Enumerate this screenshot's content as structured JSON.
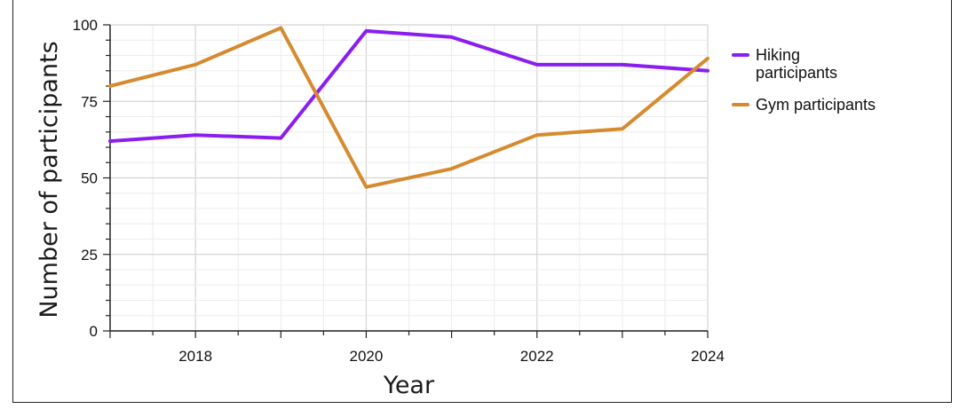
{
  "chart_data": {
    "type": "line",
    "title": "",
    "xlabel": "Year",
    "ylabel": "Number of participants",
    "xlim": [
      2017,
      2024
    ],
    "ylim": [
      0,
      100
    ],
    "x_ticks": [
      "2018",
      "2020",
      "2022",
      "2024"
    ],
    "y_ticks": [
      "0",
      "25",
      "50",
      "75",
      "100"
    ],
    "grid": true,
    "legend_position": "right",
    "x": [
      2017,
      2018,
      2019,
      2020,
      2021,
      2022,
      2023,
      2024
    ],
    "series": [
      {
        "name": "Hiking participants",
        "name_lines": [
          "Hiking",
          "participants"
        ],
        "color": "#8a1ef0",
        "values": [
          62,
          64,
          63,
          98,
          96,
          87,
          87,
          85
        ]
      },
      {
        "name": "Gym participants",
        "name_lines": [
          "Gym participants"
        ],
        "color": "#d68a2e",
        "values": [
          80,
          87,
          99,
          47,
          53,
          64,
          66,
          89
        ]
      }
    ]
  }
}
